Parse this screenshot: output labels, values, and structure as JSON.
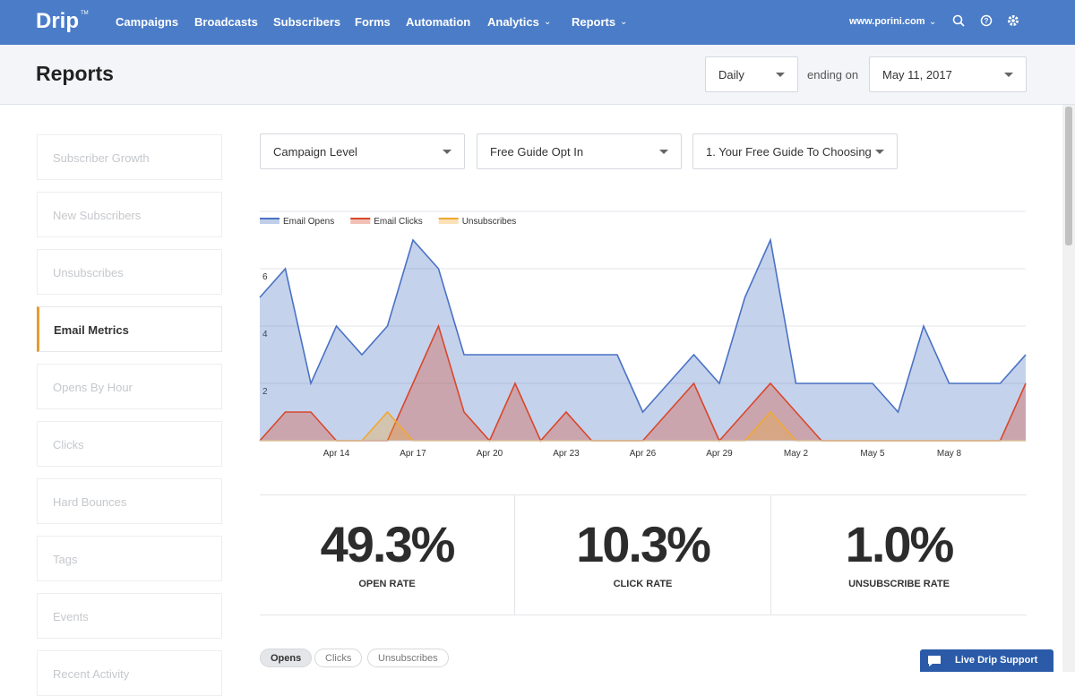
{
  "nav": {
    "logo": "Drip",
    "logo_mark": "TM",
    "items": [
      "Campaigns",
      "Broadcasts",
      "Subscribers",
      "Forms",
      "Automation",
      "Analytics",
      "Reports"
    ],
    "account": "www.porini.com"
  },
  "header": {
    "title": "Reports",
    "period": "Daily",
    "ending_label": "ending on",
    "date": "May 11, 2017"
  },
  "sidebar": {
    "items": [
      "Subscriber Growth",
      "New Subscribers",
      "Unsubscribes",
      "Email Metrics",
      "Opens By Hour",
      "Clicks",
      "Hard Bounces",
      "Tags",
      "Events",
      "Recent Activity"
    ],
    "active": 3
  },
  "filters": [
    "Campaign Level",
    "Free Guide Opt In",
    "1. Your Free Guide To Choosing"
  ],
  "chart_data": {
    "type": "area",
    "legend": "top-left",
    "grid": true,
    "categories": [
      null,
      null,
      null,
      "Apr 14",
      null,
      null,
      "Apr 17",
      null,
      null,
      "Apr 20",
      null,
      null,
      "Apr 23",
      null,
      null,
      "Apr 26",
      null,
      null,
      "Apr 29",
      null,
      null,
      "May 2",
      null,
      null,
      "May 5",
      null,
      null,
      "May 8",
      null,
      null,
      null
    ],
    "ylim": [
      0,
      8
    ],
    "yticks": [
      2,
      4,
      6
    ],
    "series": [
      {
        "name": "Email Opens",
        "color": "#4a72c4",
        "values": [
          5,
          6,
          2,
          4,
          3,
          4,
          7,
          6,
          3,
          3,
          3,
          3,
          3,
          3,
          3,
          1,
          2,
          3,
          2,
          5,
          7,
          2,
          2,
          2,
          2,
          1,
          4,
          2,
          2,
          2,
          3
        ]
      },
      {
        "name": "Email Clicks",
        "color": "#d9472b",
        "values": [
          0,
          1,
          1,
          0,
          0,
          0,
          2,
          4,
          1,
          0,
          2,
          0,
          1,
          0,
          0,
          0,
          1,
          2,
          0,
          1,
          2,
          1,
          0,
          0,
          0,
          0,
          0,
          0,
          0,
          0,
          2
        ]
      },
      {
        "name": "Unsubscribes",
        "color": "#f0a830",
        "values": [
          0,
          0,
          0,
          0,
          0,
          1,
          0,
          0,
          0,
          0,
          0,
          0,
          0,
          0,
          0,
          0,
          0,
          0,
          0,
          0,
          1,
          0,
          0,
          0,
          0,
          0,
          0,
          0,
          0,
          0,
          0
        ]
      }
    ]
  },
  "stats": [
    {
      "value": "49.3%",
      "label": "OPEN RATE"
    },
    {
      "value": "10.3%",
      "label": "CLICK RATE"
    },
    {
      "value": "1.0%",
      "label": "UNSUBSCRIBE RATE"
    }
  ],
  "tabs": [
    "Opens",
    "Clicks",
    "Unsubscribes"
  ],
  "support": "Live Drip Support"
}
